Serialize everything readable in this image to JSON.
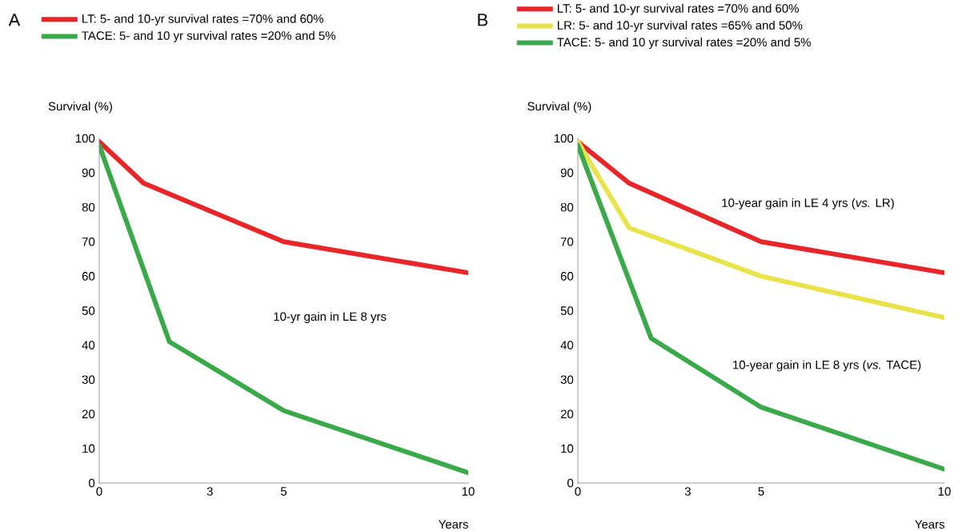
{
  "chart_data": [
    {
      "type": "line",
      "title": "A",
      "xlabel": "Years",
      "ylabel": "Survival (%)",
      "xlim": [
        0,
        10
      ],
      "ylim": [
        0,
        100
      ],
      "xticks": [
        0,
        3,
        5,
        10
      ],
      "yticks": [
        0,
        10,
        20,
        30,
        40,
        50,
        60,
        70,
        80,
        90,
        100
      ],
      "legend": "top left",
      "annotations": [
        "10-yr gain in LE 8 yrs"
      ],
      "series": [
        {
          "name": "LT: 5- and 10-yr survival rates =70% and 60%",
          "color": "#e8262a",
          "x": [
            0,
            1.2,
            5,
            10
          ],
          "values": [
            99,
            87,
            70,
            61
          ]
        },
        {
          "name": "TACE: 5- and 10 yr survival rates =20% and 5%",
          "color": "#3aa94a",
          "x": [
            0,
            1.9,
            5,
            10
          ],
          "values": [
            98,
            41,
            21,
            3
          ]
        }
      ]
    },
    {
      "type": "line",
      "title": "B",
      "xlabel": "Years",
      "ylabel": "Survival (%)",
      "xlim": [
        0,
        10
      ],
      "ylim": [
        0,
        100
      ],
      "xticks": [
        0,
        3,
        5,
        10
      ],
      "yticks": [
        0,
        10,
        20,
        30,
        40,
        50,
        60,
        70,
        80,
        90,
        100
      ],
      "legend": "top left",
      "annotations": [
        "10-year gain in LE 4 yrs (*vs.* LR)",
        "10-year gain in LE 8 yrs (*vs.* TACE)"
      ],
      "series": [
        {
          "name": "LT: 5- and 10-yr survival rates =70% and 60%",
          "color": "#e8262a",
          "x": [
            0,
            1.4,
            5,
            10
          ],
          "values": [
            99,
            87,
            70,
            61
          ]
        },
        {
          "name": "LR: 5- and 10-yr survival rates =65% and 50%",
          "color": "#e8e34a",
          "x": [
            0,
            1.4,
            5,
            10
          ],
          "values": [
            99,
            74,
            60,
            48
          ]
        },
        {
          "name": "TACE: 5- and 10 yr survival rates =20% and 5%",
          "color": "#3aa94a",
          "x": [
            0,
            2.0,
            5,
            10
          ],
          "values": [
            98,
            42,
            22,
            4
          ]
        }
      ]
    }
  ]
}
